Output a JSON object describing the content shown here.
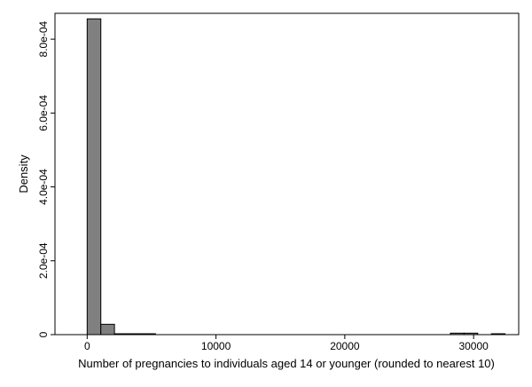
{
  "chart_data": {
    "type": "bar",
    "title": "",
    "xlabel": "Number of pregnancies to individuals aged 14 or younger (rounded to nearest 10)",
    "ylabel": "Density",
    "xlim": [
      -2500,
      33500
    ],
    "ylim": [
      0,
      0.00087
    ],
    "grid": false,
    "legend": "none",
    "bar_color": "#808080",
    "xticks": [
      {
        "value": 0,
        "label": "0"
      },
      {
        "value": 10000,
        "label": "10000"
      },
      {
        "value": 20000,
        "label": "20000"
      },
      {
        "value": 30000,
        "label": "30000"
      }
    ],
    "yticks": [
      {
        "value": 0,
        "label": "0"
      },
      {
        "value": 0.0002,
        "label": "2.0e-04"
      },
      {
        "value": 0.0004,
        "label": "4.0e-04"
      },
      {
        "value": 0.0006,
        "label": "6.0e-04"
      },
      {
        "value": 0.0008,
        "label": "8.0e-04"
      }
    ],
    "bins": [
      {
        "start": 0,
        "end": 1060,
        "value": 0.000855
      },
      {
        "start": 1060,
        "end": 2120,
        "value": 2.8e-05
      },
      {
        "start": 2120,
        "end": 3180,
        "value": 1e-06
      },
      {
        "start": 3180,
        "end": 4240,
        "value": 1e-06
      },
      {
        "start": 4240,
        "end": 5300,
        "value": 1e-06
      },
      {
        "start": 28200,
        "end": 29260,
        "value": 4e-06
      },
      {
        "start": 29260,
        "end": 30320,
        "value": 4e-06
      },
      {
        "start": 31380,
        "end": 32440,
        "value": 2e-06
      }
    ]
  }
}
